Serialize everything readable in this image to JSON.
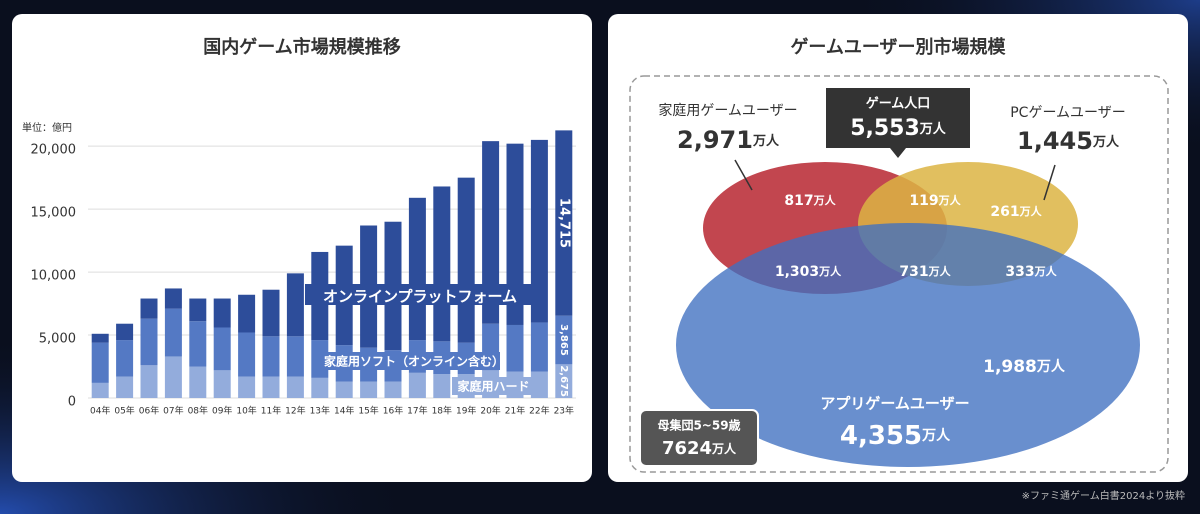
{
  "chart_data": {
    "type": "bar",
    "stacked": true,
    "title": "国内ゲーム市場規模推移",
    "y_unit_label": "単位：億円",
    "categories": [
      "04年",
      "05年",
      "06年",
      "07年",
      "08年",
      "09年",
      "10年",
      "11年",
      "12年",
      "13年",
      "14年",
      "15年",
      "16年",
      "17年",
      "18年",
      "19年",
      "20年",
      "21年",
      "22年",
      "23年"
    ],
    "series": [
      {
        "name": "家庭用ハード",
        "color": "#93acdc",
        "values": [
          1200,
          1700,
          2600,
          3300,
          2500,
          2200,
          1700,
          1700,
          1700,
          1600,
          1300,
          1300,
          1300,
          2000,
          1900,
          1900,
          2200,
          2100,
          2100,
          2675
        ],
        "value_labels": [
          null,
          null,
          null,
          null,
          null,
          null,
          null,
          null,
          null,
          null,
          null,
          null,
          null,
          null,
          null,
          null,
          null,
          null,
          null,
          "2,675"
        ]
      },
      {
        "name": "家庭用ソフト（オンライン含む）",
        "color": "#5479c4",
        "values": [
          3200,
          2900,
          3700,
          3800,
          3600,
          3400,
          3500,
          3200,
          3200,
          3000,
          2900,
          2700,
          2500,
          2600,
          2600,
          2500,
          3700,
          3700,
          3900,
          3865
        ],
        "value_labels": [
          null,
          null,
          null,
          null,
          null,
          null,
          null,
          null,
          null,
          null,
          null,
          null,
          null,
          null,
          null,
          null,
          null,
          null,
          null,
          "3,865"
        ]
      },
      {
        "name": "オンラインプラットフォーム",
        "color": "#2d4d9a",
        "values": [
          700,
          1300,
          1600,
          1600,
          1800,
          2300,
          3000,
          3700,
          5000,
          7000,
          7900,
          9700,
          10200,
          11300,
          12300,
          13100,
          14500,
          14400,
          14500,
          14715
        ],
        "value_labels": [
          null,
          null,
          null,
          null,
          null,
          null,
          null,
          null,
          null,
          null,
          null,
          null,
          null,
          null,
          null,
          null,
          null,
          null,
          null,
          "14,715"
        ]
      }
    ],
    "ylim": [
      0,
      22000
    ],
    "yticks": [
      0,
      {
        "value": 5000,
        "label": "5,000"
      },
      {
        "value": 10000,
        "label": "10,000"
      },
      {
        "value": 15000,
        "label": "15,000"
      },
      {
        "value": 20000,
        "label": "20,000"
      }
    ],
    "grid": true
  },
  "venn": {
    "title": "ゲームユーザー別市場規模",
    "console": {
      "name": "家庭用ゲームユーザー",
      "number": "2,971",
      "unit": "万人"
    },
    "total": {
      "name": "ゲーム人口",
      "number": "5,553",
      "unit": "万人"
    },
    "pc": {
      "name": "PCゲームユーザー",
      "number": "1,445",
      "unit": "万人"
    },
    "app": {
      "name": "アプリゲームユーザー",
      "number": "4,355",
      "unit": "万人"
    },
    "population": {
      "name": "母集団5~59歳",
      "number": "7624",
      "unit": "万人"
    },
    "regions": [
      {
        "number": "817",
        "unit": "万人"
      },
      {
        "number": "119",
        "unit": "万人"
      },
      {
        "number": "261",
        "unit": "万人"
      },
      {
        "number": "1,303",
        "unit": "万人"
      },
      {
        "number": "731",
        "unit": "万人"
      },
      {
        "number": "333",
        "unit": "万人"
      },
      {
        "number": "1,988",
        "unit": "万人"
      }
    ]
  },
  "footnote": "※ファミ通ゲーム白書2024より抜粋"
}
